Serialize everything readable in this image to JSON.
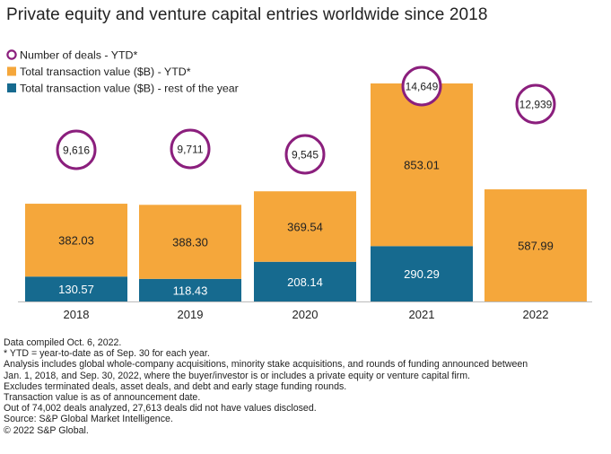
{
  "title": "Private equity and venture capital entries worldwide since 2018",
  "legend": [
    {
      "label": "Number of deals - YTD*",
      "marker": "circle",
      "color": "#8b1f7d"
    },
    {
      "label": "Total transaction value ($B) - YTD*",
      "marker": "square",
      "color": "#f5a73b"
    },
    {
      "label": "Total transaction value ($B) - rest of the year",
      "marker": "square",
      "color": "#166a8f"
    }
  ],
  "chart_data": {
    "type": "bar",
    "stacked": true,
    "categories": [
      "2018",
      "2019",
      "2020",
      "2021",
      "2022"
    ],
    "series": [
      {
        "name": "Total transaction value ($B) - rest of the year",
        "color": "#166a8f",
        "values": [
          130.57,
          118.43,
          208.14,
          290.29,
          null
        ]
      },
      {
        "name": "Total transaction value ($B) - YTD*",
        "color": "#f5a73b",
        "values": [
          382.03,
          388.3,
          369.54,
          853.01,
          587.99
        ]
      }
    ],
    "value_labels": {
      "rest": [
        "130.57",
        "118.43",
        "208.14",
        "290.29",
        ""
      ],
      "ytd": [
        "382.03",
        "388.30",
        "369.54",
        "853.01",
        "587.99"
      ]
    },
    "deal_counts": {
      "name": "Number of deals - YTD*",
      "values": [
        9616,
        9711,
        9545,
        14649,
        12939
      ],
      "labels": [
        "9,616",
        "9,711",
        "9,545",
        "14,649",
        "12,939"
      ]
    },
    "ylim": [
      0,
      1143.3
    ],
    "grid": false,
    "legend_position": "top-left"
  },
  "notes": [
    "Data compiled Oct. 6, 2022.",
    "* YTD = year-to-date as of Sep. 30 for each year.",
    "Analysis includes global whole-company acquisitions, minority stake acquisitions, and rounds of funding announced between",
    "Jan. 1, 2018, and Sep. 30, 2022, where the buyer/investor is or includes a private equity or venture capital firm.",
    "Excludes terminated deals, asset deals, and debt and early stage funding rounds.",
    "Transaction value is as of announcement date.",
    "Out of 74,002  deals analyzed, 27,613 deals did not have values disclosed.",
    "Source: S&P Global Market Intelligence.",
    "© 2022 S&P Global."
  ]
}
